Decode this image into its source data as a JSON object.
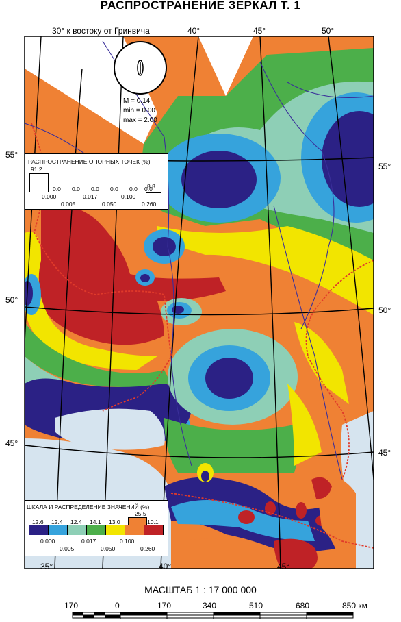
{
  "title": "РАСПРОСТРАНЕНИЕ ЗЕРКАЛ Т. 1",
  "top_axis": {
    "caption": "30° к востоку от Гринвича",
    "ticks": [
      "40°",
      "45°",
      "50°"
    ]
  },
  "bottom_axis": {
    "ticks": [
      "35°",
      "40°",
      "45°"
    ]
  },
  "left_axis": {
    "ticks": [
      "55°",
      "50°",
      "45°"
    ]
  },
  "right_axis": {
    "ticks": [
      "55°",
      "50°",
      "45°"
    ]
  },
  "stats": {
    "m": "M = 0.14",
    "min": "min = 0.00",
    "max": "max = 2.00"
  },
  "ref_points_legend": {
    "title": "РАСПРОСТРАНЕНИЕ ОПОРНЫХ ТОЧЕК (%)",
    "big_value": "91.2",
    "row_values": [
      "0.0",
      "0.0",
      "0.0",
      "0.0",
      "0.0",
      "0.0",
      "8.8"
    ],
    "break_values_top": [
      "0.000",
      "0.017",
      "0.100"
    ],
    "break_values_bottom": [
      "0.005",
      "0.050",
      "0.260"
    ]
  },
  "value_scale_legend": {
    "title": "ШКАЛА И РАСПРЕДЕЛЕНИЕ ЗНАЧЕНИЙ (%)",
    "bar_values": [
      "12.6",
      "12.4",
      "12.4",
      "14.1",
      "13.0",
      "25.5",
      "10.1"
    ],
    "colors": [
      "#2b2185",
      "#36a3dc",
      "#8ecfb6",
      "#4caf4a",
      "#f2e500",
      "#ef8134",
      "#bf2226"
    ],
    "break_values_top": [
      "0.000",
      "0.017",
      "0.100"
    ],
    "break_values_bottom": [
      "0.005",
      "0.050",
      "0.260"
    ]
  },
  "scale_bar": {
    "title": "МАСШТАБ 1 : 17 000 000",
    "labels": [
      "170",
      "0",
      "170",
      "340",
      "510",
      "680",
      "850 км"
    ]
  }
}
